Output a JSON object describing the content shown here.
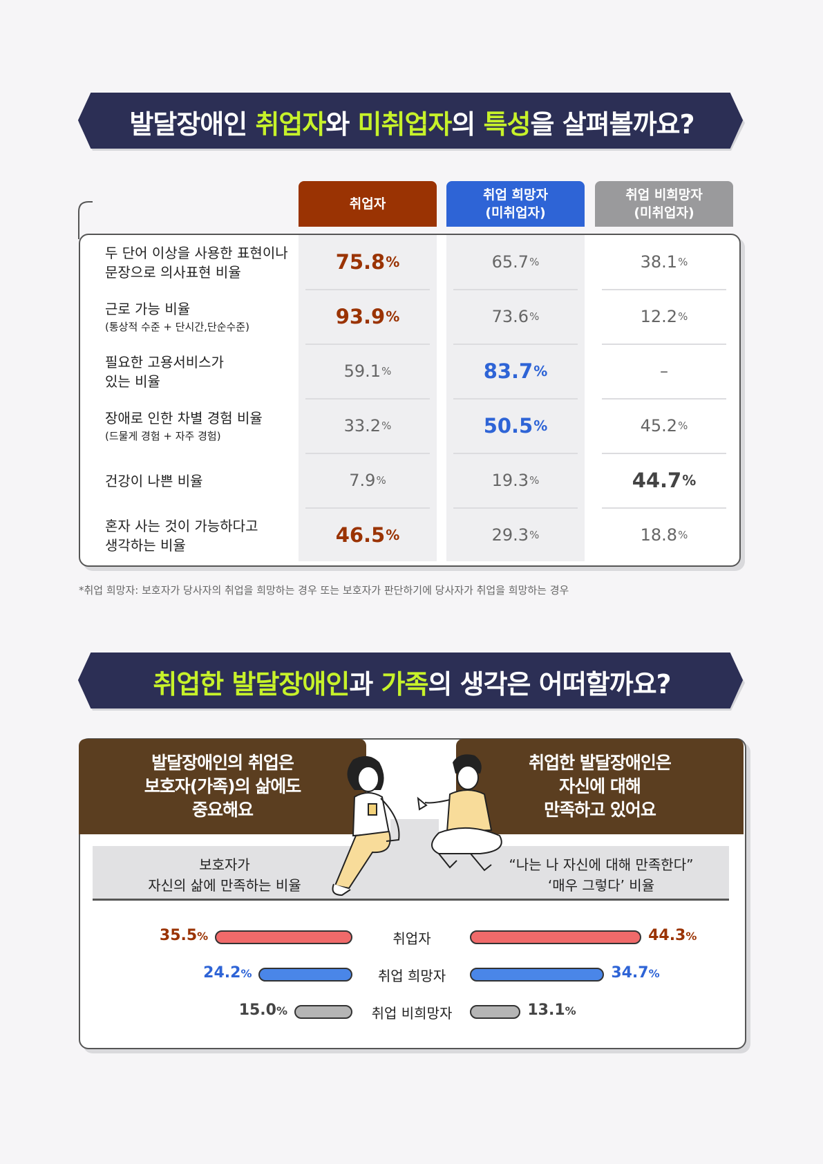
{
  "section1": {
    "title_parts": [
      {
        "text": "발달장애인 ",
        "hl": false
      },
      {
        "text": "취업자",
        "hl": true
      },
      {
        "text": "와 ",
        "hl": false
      },
      {
        "text": "미취업자",
        "hl": true
      },
      {
        "text": "의 ",
        "hl": false
      },
      {
        "text": "특성",
        "hl": true
      },
      {
        "text": "을 살펴볼까요?",
        "hl": false
      }
    ],
    "columns": [
      {
        "line1": "취업자",
        "line2": "",
        "color": "#9a3303"
      },
      {
        "line1": "취업 희망자",
        "line2": "(미취업자)",
        "color": "#2e64d6"
      },
      {
        "line1": "취업 비희망자",
        "line2": "(미취업자)",
        "color": "#9a9a9c"
      }
    ],
    "rows": [
      {
        "label_l1": "두 단어 이상을 사용한 표현이나",
        "label_l2": "문장으로 의사표현 비율",
        "sub": "",
        "values": [
          "75.8",
          "65.7",
          "38.1"
        ],
        "units": [
          "%",
          "%",
          "%"
        ],
        "highlight": [
          true,
          false,
          false
        ]
      },
      {
        "label_l1": "근로 가능 비율",
        "label_l2": "",
        "sub": "(통상적 수준 + 단시간,단순수준)",
        "values": [
          "93.9",
          "73.6",
          "12.2"
        ],
        "units": [
          "%",
          "%",
          "%"
        ],
        "highlight": [
          true,
          false,
          false
        ]
      },
      {
        "label_l1": "필요한 고용서비스가",
        "label_l2": "있는 비율",
        "sub": "",
        "values": [
          "59.1",
          "83.7",
          "–"
        ],
        "units": [
          "%",
          "%",
          ""
        ],
        "highlight": [
          false,
          true,
          false
        ]
      },
      {
        "label_l1": "장애로 인한 차별 경험 비율",
        "label_l2": "",
        "sub": "(드물게 경험 + 자주 경험)",
        "values": [
          "33.2",
          "50.5",
          "45.2"
        ],
        "units": [
          "%",
          "%",
          "%"
        ],
        "highlight": [
          false,
          true,
          false
        ]
      },
      {
        "label_l1": "건강이 나쁜 비율",
        "label_l2": "",
        "sub": "",
        "values": [
          "7.9",
          "19.3",
          "44.7"
        ],
        "units": [
          "%",
          "%",
          "%"
        ],
        "highlight": [
          false,
          false,
          true
        ]
      },
      {
        "label_l1": "혼자 사는 것이 가능하다고",
        "label_l2": "생각하는 비율",
        "sub": "",
        "values": [
          "46.5",
          "29.3",
          "18.8"
        ],
        "units": [
          "%",
          "%",
          "%"
        ],
        "highlight": [
          true,
          false,
          false
        ]
      }
    ],
    "footnote": "*취업 희망자: 보호자가 당사자의 취업을 희망하는 경우 또는 보호자가 판단하기에 당사자가 취업을 희망하는 경우"
  },
  "section2": {
    "title_parts": [
      {
        "text": "취업한 발달장애인",
        "hl": true
      },
      {
        "text": "과 ",
        "hl": false
      },
      {
        "text": "가족",
        "hl": true
      },
      {
        "text": "의 생각은 어떠할까요?",
        "hl": false
      }
    ],
    "left_box": [
      "발달장애인의 취업은",
      "보호자(가족)의 삶에도",
      "중요해요"
    ],
    "right_box": [
      "취업한 발달장애인은",
      "자신에 대해",
      "만족하고 있어요"
    ],
    "left_question": [
      "보호자가",
      "자신의 삶에 만족하는 비율"
    ],
    "right_question": [
      "“나는 나 자신에 대해 만족한다”",
      "‘매우 그렇다’ 비율"
    ]
  },
  "chart_data": {
    "type": "bar",
    "categories": [
      "취업자",
      "취업 희망자",
      "취업 비희망자"
    ],
    "series": [
      {
        "values": [
          35.5,
          24.2,
          15.0
        ]
      },
      {
        "values": [
          44.3,
          34.7,
          13.1
        ]
      }
    ],
    "unit": "%",
    "colors": [
      "#f06a6a",
      "#4a86e8",
      "#b5b5b5"
    ],
    "value_colors": [
      "#9a3303",
      "#2e64d6",
      "#444444"
    ],
    "xlim": [
      0,
      50
    ]
  },
  "colors": {
    "navy": "#2c2f55",
    "accent": "#c7f22a",
    "brown": "#5b3e20"
  }
}
